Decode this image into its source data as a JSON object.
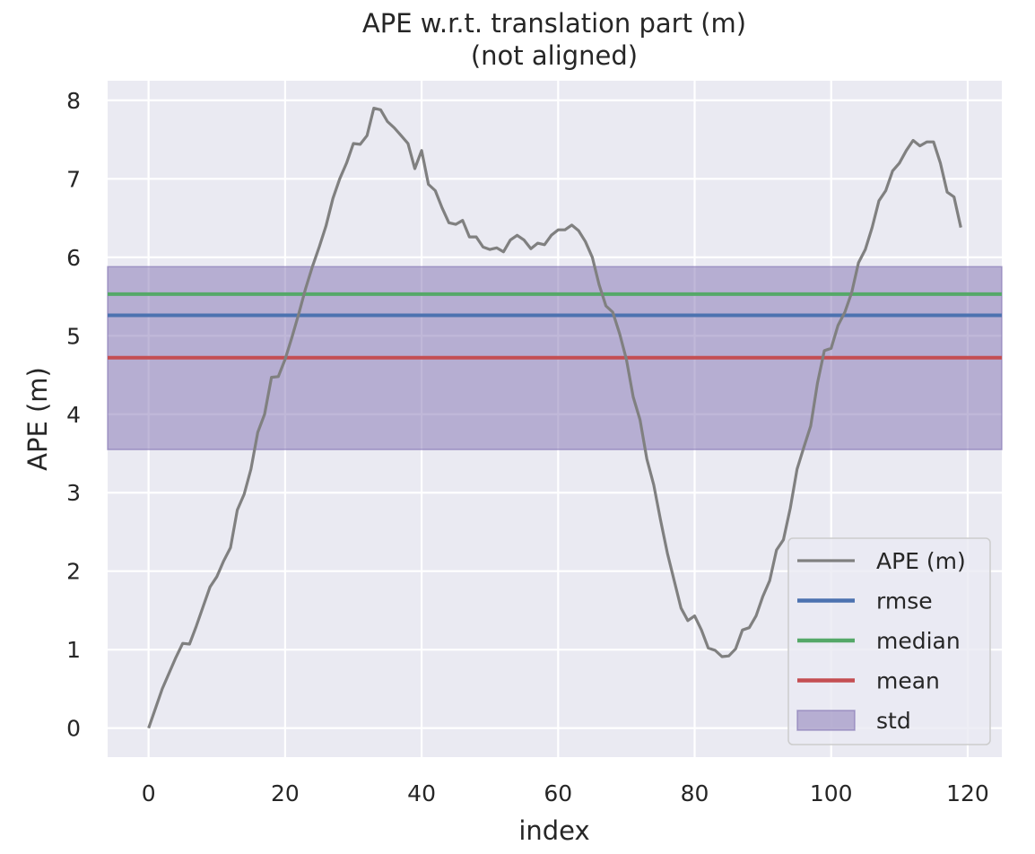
{
  "chart_data": {
    "type": "line",
    "title": "APE w.r.t. translation part (m)",
    "subtitle": "(not aligned)",
    "xlabel": "index",
    "ylabel": "APE (m)",
    "xlim": [
      -6,
      125
    ],
    "ylim": [
      -0.37,
      8.25
    ],
    "x_ticks": [
      0,
      20,
      40,
      60,
      80,
      100,
      120
    ],
    "y_ticks": [
      0,
      1,
      2,
      3,
      4,
      5,
      6,
      7,
      8
    ],
    "grid": true,
    "legend_position": "lower-right",
    "colors": {
      "background": "#EAEAF2",
      "grid": "#FFFFFF",
      "ape": "#808080",
      "rmse": "#4C72B0",
      "median": "#55A868",
      "mean": "#C44E52",
      "std_fill": "#8172B2"
    },
    "series": [
      {
        "name": "APE (m)",
        "x": [
          0,
          1,
          2,
          3,
          4,
          5,
          6,
          7,
          8,
          9,
          10,
          11,
          12,
          13,
          14,
          15,
          16,
          17,
          18,
          19,
          20,
          21,
          22,
          23,
          24,
          25,
          26,
          27,
          28,
          29,
          30,
          31,
          32,
          33,
          34,
          35,
          36,
          37,
          38,
          39,
          40,
          41,
          42,
          43,
          44,
          45,
          46,
          47,
          48,
          49,
          50,
          51,
          52,
          53,
          54,
          55,
          56,
          57,
          58,
          59,
          60,
          61,
          62,
          63,
          64,
          65,
          66,
          67,
          68,
          69,
          70,
          71,
          72,
          73,
          74,
          75,
          76,
          77,
          78,
          79,
          80,
          81,
          82,
          83,
          84,
          85,
          86,
          87,
          88,
          89,
          90,
          91,
          92,
          93,
          94,
          95,
          96,
          97,
          98,
          99,
          100,
          101,
          102,
          103,
          104,
          105,
          106,
          107,
          108,
          109,
          110,
          111,
          112,
          113,
          114,
          115,
          116,
          117,
          118,
          119
        ],
        "values": [
          0.0,
          0.25,
          0.5,
          0.7,
          0.9,
          1.08,
          1.07,
          1.3,
          1.55,
          1.8,
          1.93,
          2.13,
          2.3,
          2.78,
          2.98,
          3.3,
          3.77,
          4.0,
          4.47,
          4.48,
          4.7,
          4.98,
          5.28,
          5.6,
          5.88,
          6.13,
          6.4,
          6.75,
          7.0,
          7.2,
          7.45,
          7.44,
          7.55,
          7.9,
          7.88,
          7.73,
          7.65,
          7.55,
          7.45,
          7.13,
          7.36,
          6.93,
          6.85,
          6.63,
          6.44,
          6.42,
          6.47,
          6.26,
          6.26,
          6.13,
          6.1,
          6.12,
          6.07,
          6.22,
          6.28,
          6.22,
          6.11,
          6.18,
          6.16,
          6.28,
          6.35,
          6.35,
          6.41,
          6.34,
          6.2,
          6.0,
          5.65,
          5.38,
          5.3,
          5.03,
          4.7,
          4.22,
          3.93,
          3.43,
          3.1,
          2.65,
          2.23,
          1.88,
          1.53,
          1.37,
          1.43,
          1.25,
          1.02,
          0.99,
          0.91,
          0.92,
          1.01,
          1.25,
          1.28,
          1.43,
          1.68,
          1.88,
          2.27,
          2.4,
          2.8,
          3.3,
          3.58,
          3.85,
          4.4,
          4.81,
          4.84,
          5.13,
          5.3,
          5.55,
          5.93,
          6.1,
          6.38,
          6.72,
          6.85,
          7.1,
          7.2,
          7.36,
          7.49,
          7.42,
          7.47,
          7.47,
          7.2,
          6.83,
          6.77,
          6.38
        ]
      }
    ],
    "stats": [
      {
        "name": "rmse",
        "value": 5.26
      },
      {
        "name": "median",
        "value": 5.53
      },
      {
        "name": "mean",
        "value": 4.72
      }
    ],
    "std": {
      "name": "std",
      "lower": 3.55,
      "upper": 5.88
    },
    "legend": [
      "APE (m)",
      "rmse",
      "median",
      "mean",
      "std"
    ]
  }
}
